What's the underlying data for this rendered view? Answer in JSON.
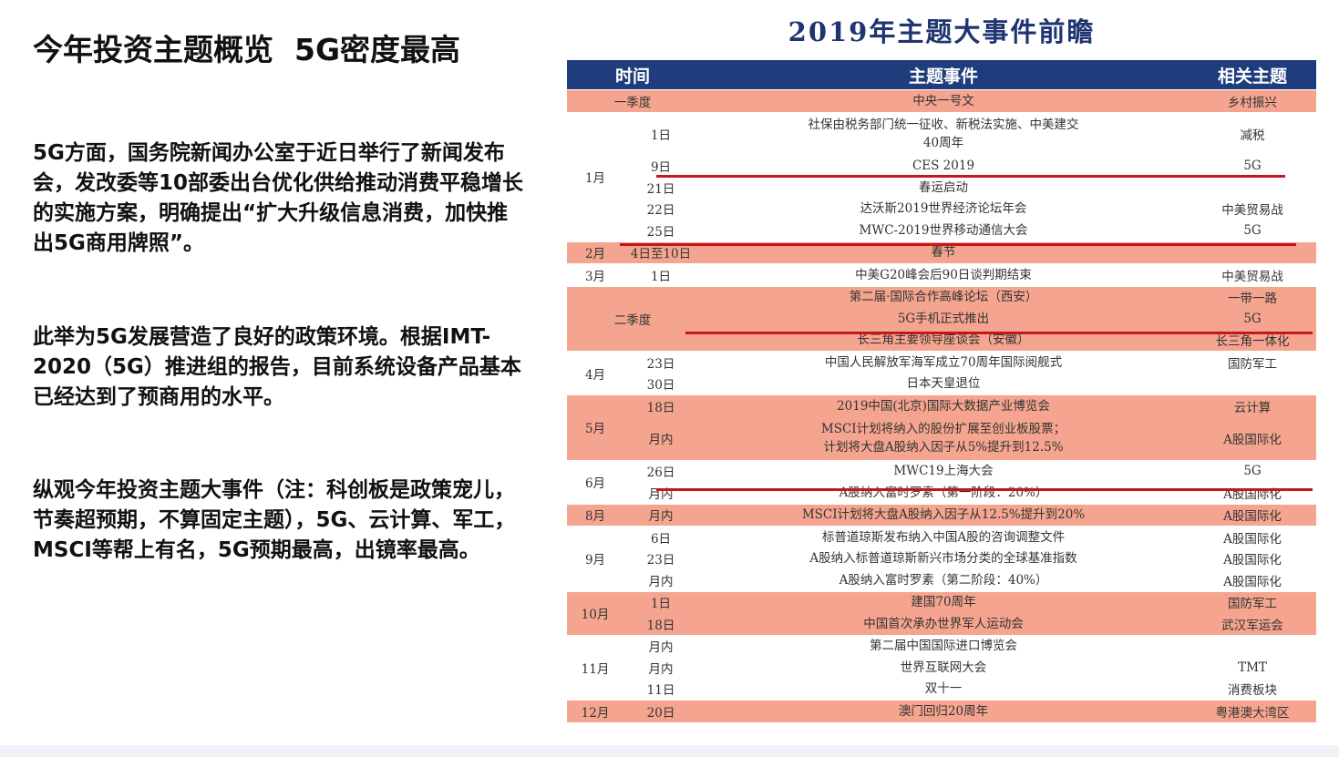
{
  "slide": {
    "title": "今年投资主题概览  5G密度最高",
    "paragraphs": [
      "5G方面，国务院新闻办公室于近日举行了新闻发布会，发改委等10部委出台优化供给推动消费平稳增长的实施方案，明确提出“扩大升级信息消费，加快推出5G商用牌照”。",
      "此举为5G发展营造了良好的政策环境。根据IMT-2020（5G）推进组的报告，目前系统设备产品基本已经达到了预商用的水平。",
      "纵观今年投资主题大事件（注：科创板是政策宠儿，节奏超预期，不算固定主题），5G、云计算、军工，MSCI等帮上有名，5G预期最高，出镜率最高。"
    ]
  },
  "table": {
    "title": "2019年主题大事件前瞻",
    "headers": {
      "time": "时间",
      "event": "主题事件",
      "theme": "相关主题"
    },
    "colors": {
      "header": "#1f3c7c",
      "highlight": "#f5a58f",
      "underline": "#c4161c"
    },
    "groups": [
      {
        "label": "一季度",
        "pink": true,
        "rows": [
          {
            "event": "中央一号文",
            "theme": "乡村振兴"
          }
        ]
      },
      {
        "month": "1月",
        "pink": false,
        "rows": [
          {
            "date": "1日",
            "event": "社保由税务部门统一征收、新税法实施、中美建交\n40周年",
            "theme": "减税",
            "lines": 2
          },
          {
            "date": "9日",
            "event": "CES 2019",
            "theme": "5G"
          },
          {
            "date": "21日",
            "event": "春运启动",
            "theme": ""
          },
          {
            "date": "22日",
            "event": "达沃斯2019世界经济论坛年会",
            "theme": "中美贸易战"
          },
          {
            "date": "25日",
            "event": "MWC-2019世界移动通信大会",
            "theme": "5G"
          }
        ]
      },
      {
        "month": "2月",
        "pink": true,
        "rows": [
          {
            "date": "4日至10日",
            "event": "春节",
            "theme": ""
          }
        ]
      },
      {
        "month": "3月",
        "pink": false,
        "rows": [
          {
            "date": "1日",
            "event": "中美G20峰会后90日谈判期结束",
            "theme": "中美贸易战"
          }
        ]
      },
      {
        "label": "二季度",
        "pink": true,
        "rows": [
          {
            "event": "第二届·国际合作高峰论坛（西安）",
            "theme": "一带一路"
          },
          {
            "event": "5G手机正式推出",
            "theme": "5G"
          },
          {
            "event": "长三角主要领导座谈会（安徽）",
            "theme": "长三角一体化"
          }
        ]
      },
      {
        "month": "4月",
        "pink": false,
        "rows": [
          {
            "date": "23日",
            "event": "中国人民解放军海军成立70周年国际阅舰式",
            "theme": "国防军工"
          },
          {
            "date": "30日",
            "event": "日本天皇退位",
            "theme": ""
          }
        ]
      },
      {
        "month": "5月",
        "pink": true,
        "rows": [
          {
            "date": "18日",
            "event": "2019中国(北京)国际大数据产业博览会",
            "theme": "云计算"
          },
          {
            "date": "月内",
            "event": "MSCI计划将纳入的股份扩展至创业板股票；\n计划将大盘A股纳入因子从5%提升到12.5%",
            "theme": "A股国际化",
            "lines": 2
          }
        ]
      },
      {
        "month": "6月",
        "pink": false,
        "rows": [
          {
            "date": "26日",
            "event": "MWC19上海大会",
            "theme": "5G"
          },
          {
            "date": "月内",
            "event": "A股纳入富时罗素（第一阶段：20%）",
            "theme": "A股国际化"
          }
        ]
      },
      {
        "month": "8月",
        "pink": true,
        "rows": [
          {
            "date": "月内",
            "event": "MSCI计划将大盘A股纳入因子从12.5%提升到20%",
            "theme": "A股国际化"
          }
        ]
      },
      {
        "month": "9月",
        "pink": false,
        "rows": [
          {
            "date": "6日",
            "event": "标普道琼斯发布纳入中国A股的咨询调整文件",
            "theme": "A股国际化"
          },
          {
            "date": "23日",
            "event": "A股纳入标普道琼斯新兴市场分类的全球基准指数",
            "theme": "A股国际化"
          },
          {
            "date": "月内",
            "event": "A股纳入富时罗素（第二阶段：40%）",
            "theme": "A股国际化"
          }
        ]
      },
      {
        "month": "10月",
        "pink": true,
        "rows": [
          {
            "date": "1日",
            "event": "建国70周年",
            "theme": "国防军工"
          },
          {
            "date": "18日",
            "event": "中国首次承办世界军人运动会",
            "theme": "武汉军运会"
          }
        ]
      },
      {
        "month": "11月",
        "pink": false,
        "rows": [
          {
            "date": "月内",
            "event": "第二届中国国际进口博览会",
            "theme": ""
          },
          {
            "date": "月内",
            "event": "世界互联网大会",
            "theme": "TMT"
          },
          {
            "date": "11日",
            "event": "双十一",
            "theme": "消费板块"
          }
        ]
      },
      {
        "month": "12月",
        "pink": true,
        "rows": [
          {
            "date": "20日",
            "event": "澳门回归20周年",
            "theme": "粤港澳大湾区"
          }
        ]
      }
    ]
  }
}
